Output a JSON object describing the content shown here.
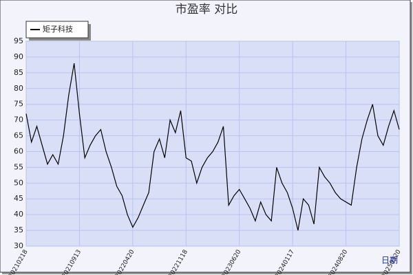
{
  "chart_data": {
    "type": "line",
    "title": "市盈率  对比",
    "categories": [
      "20210218",
      null,
      null,
      null,
      null,
      null,
      null,
      null,
      null,
      null,
      "20210913",
      null,
      null,
      null,
      null,
      null,
      null,
      null,
      null,
      null,
      "20220420",
      null,
      null,
      null,
      null,
      null,
      null,
      null,
      null,
      null,
      "20221118",
      null,
      null,
      null,
      null,
      null,
      null,
      null,
      null,
      null,
      "20230620",
      null,
      null,
      null,
      null,
      null,
      null,
      null,
      null,
      null,
      "20240117",
      null,
      null,
      null,
      null,
      null,
      null,
      null,
      null,
      null,
      "20240820",
      null,
      null,
      null,
      null,
      null,
      null,
      null,
      null,
      null,
      "20250320"
    ],
    "series": [
      {
        "name": "矩子科技",
        "color": "#000000",
        "values": [
          72,
          63,
          68,
          62,
          56,
          59,
          56,
          65,
          78,
          88,
          72,
          58,
          62,
          65,
          67,
          60,
          55,
          49,
          46,
          40,
          36,
          39,
          43,
          47,
          60,
          64,
          58,
          70,
          66,
          73,
          58,
          57,
          50,
          55,
          58,
          60,
          63,
          68,
          43,
          46,
          48,
          45,
          42,
          38,
          44,
          40,
          38,
          55,
          50,
          47,
          42,
          35,
          45,
          43,
          37,
          55,
          52,
          50,
          47,
          45,
          44,
          43,
          55,
          64,
          70,
          75,
          65,
          62,
          68,
          73,
          67
        ]
      }
    ],
    "xlabel": "日期",
    "ylim": [
      30,
      95
    ],
    "yticks": [
      30,
      35,
      40,
      45,
      50,
      55,
      60,
      65,
      70,
      75,
      80,
      85,
      90,
      95
    ],
    "grid": true
  }
}
